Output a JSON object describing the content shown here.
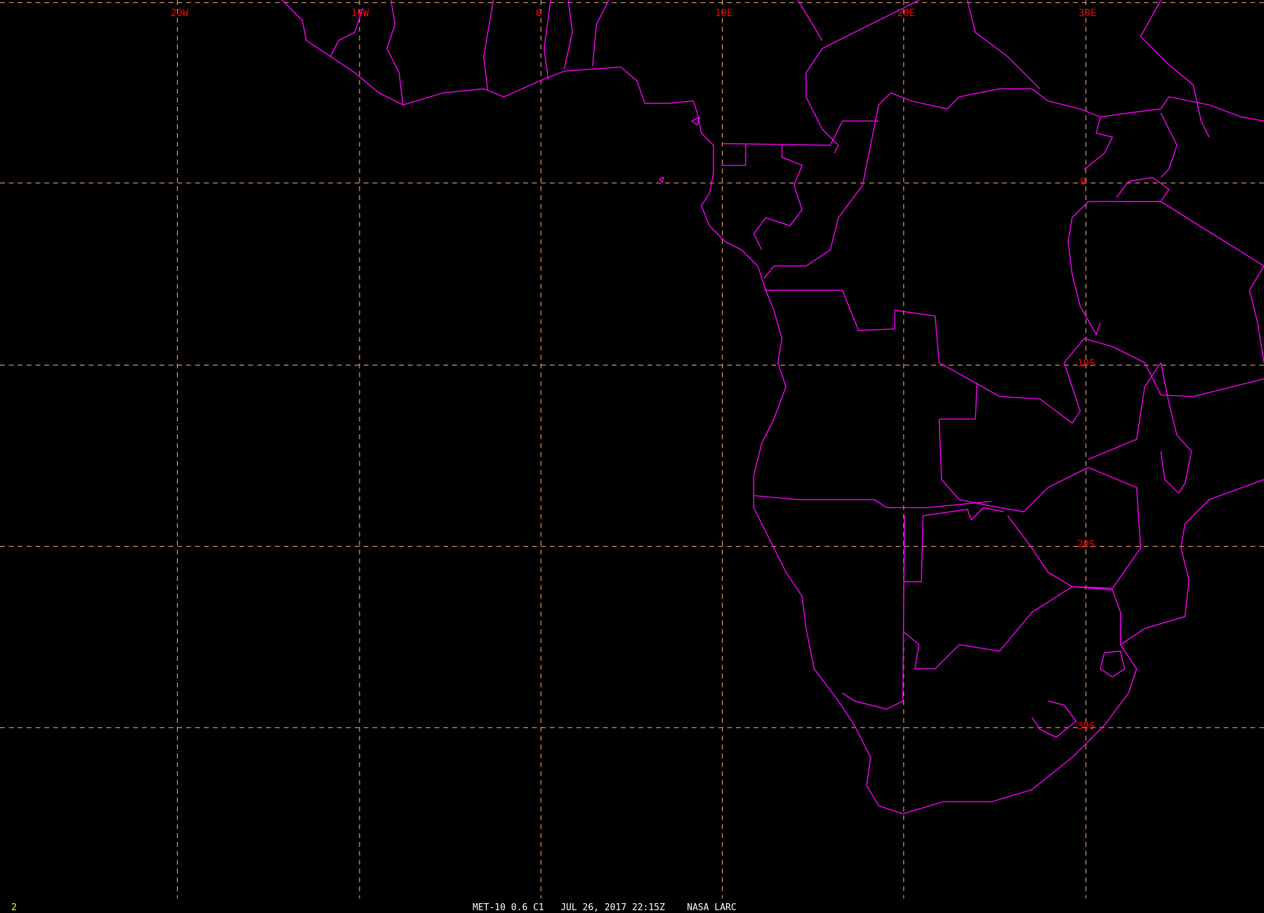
{
  "image": {
    "frame_number": "2",
    "caption": "MET-10 0.6 C1   JUL 26, 2017 22:15Z    NASA LARC"
  },
  "grid": {
    "longitude_labels": [
      "20W",
      "10W",
      "0",
      "10E",
      "20E",
      "30E"
    ],
    "latitude_labels": [
      "0",
      "10S",
      "20S",
      "30S"
    ]
  },
  "colors": {
    "background": "#000000",
    "gridlines": "#e8a070",
    "grid_labels": "#ff0000",
    "coastlines": "#ff00ff",
    "frame_number": "#ffff00",
    "caption": "#ffffff"
  }
}
